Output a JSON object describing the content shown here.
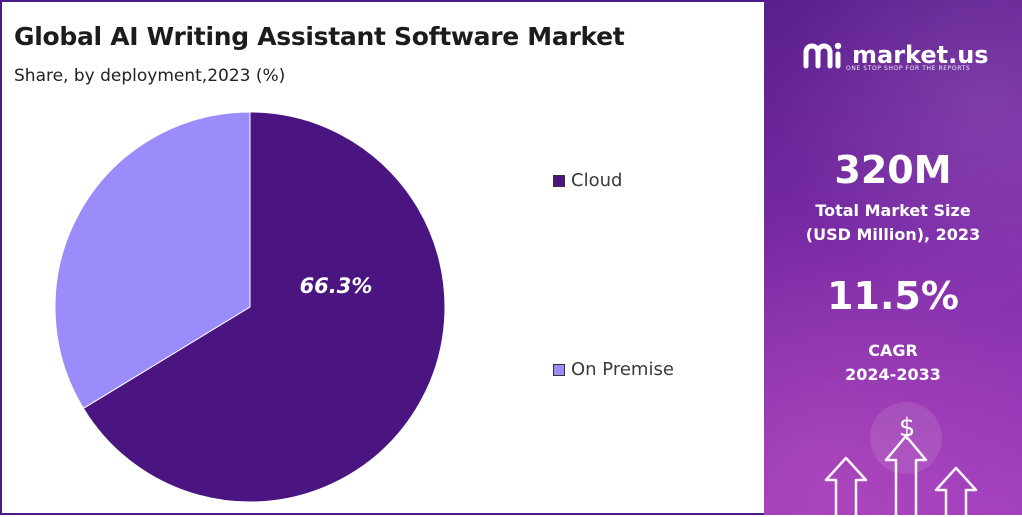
{
  "chart_data": {
    "type": "pie",
    "title": "Global AI Writing Assistant Software Market",
    "subtitle": "Share, by deployment,2023 (%)",
    "slices": [
      {
        "label": "Cloud",
        "value": 66.3,
        "color": "#4a1580",
        "data_label": "66.3%"
      },
      {
        "label": "On Premise",
        "value": 33.7,
        "color": "#9a8cfb",
        "data_label": ""
      }
    ],
    "legend_position": "right"
  },
  "sidebar": {
    "brand_name": "market.us",
    "brand_tagline": "ONE STOP SHOP FOR THE REPORTS",
    "logo_icon": "market-us-logo-icon",
    "market_size_value": "320M",
    "market_size_label_line1": "Total Market Size",
    "market_size_label_line2": "(USD Million), 2023",
    "cagr_value": "11.5%",
    "cagr_label_line1": "CAGR",
    "cagr_label_line2": "2024-2033",
    "dollar_symbol": "$",
    "decor_icons": [
      "dollar-icon",
      "arrow-up-icon"
    ]
  }
}
